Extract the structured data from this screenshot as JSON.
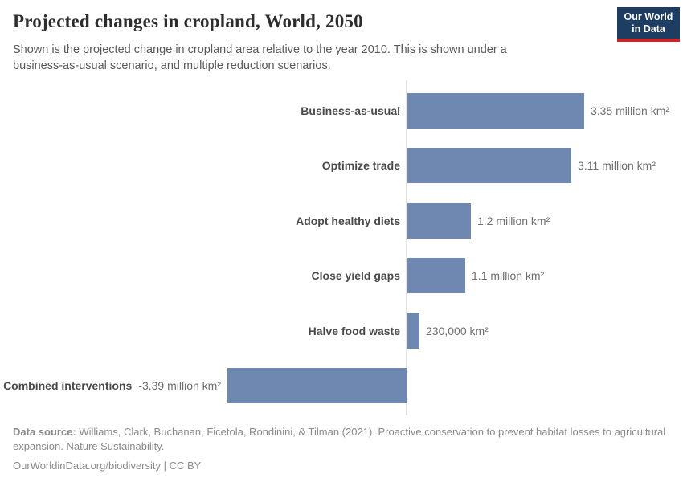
{
  "header": {
    "title": "Projected changes in cropland, World, 2050",
    "subtitle_line1": "Shown is the projected change in cropland area relative to the year 2010. This is shown under a",
    "subtitle_line2": "business-as-usual scenario, and multiple reduction scenarios.",
    "logo": {
      "line1": "Our World",
      "line2": "in Data",
      "background_color": "#1d3d63",
      "accent_color": "#c62828"
    }
  },
  "chart_data": {
    "type": "bar",
    "orientation": "horizontal",
    "title": "Projected changes in cropland, World, 2050",
    "unit": "million km²",
    "categories": [
      "Business-as-usual",
      "Optimize trade",
      "Adopt healthy diets",
      "Close yield gaps",
      "Halve food waste",
      "Combined interventions"
    ],
    "values": [
      3.35,
      3.11,
      1.2,
      1.1,
      0.23,
      -3.39
    ],
    "value_labels": [
      "3.35 million km²",
      "3.11 million km²",
      "1.2 million km²",
      "1.1 million km²",
      "230,000 km²",
      "-3.39 million km²"
    ],
    "baseline": 0,
    "xlim": [
      -3.5,
      3.5
    ],
    "grid": false,
    "legend": "none",
    "bar_color": "#6e88b2"
  },
  "footer": {
    "source_label": "Data source:",
    "source_line1": "Williams, Clark, Buchanan, Ficetola, Rondinini, & Tilman (2021). Proactive conservation to prevent habitat losses to agricultural",
    "source_line2": "expansion. Nature Sustainability.",
    "license": "OurWorldinData.org/biodiversity | CC BY"
  }
}
